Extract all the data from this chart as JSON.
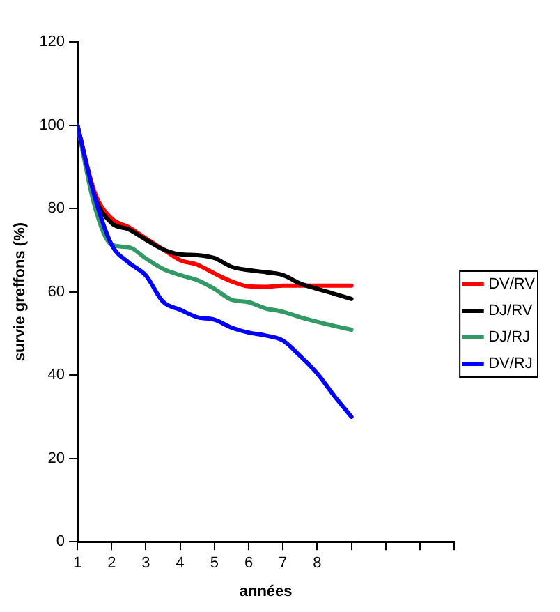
{
  "chart_data": {
    "type": "line",
    "xlabel": "années",
    "ylabel": "survie greffons (%)",
    "x": [
      1,
      1.5,
      2,
      2.5,
      3,
      3.5,
      4,
      4.5,
      5,
      5.5,
      6,
      6.5,
      7,
      7.5,
      8,
      8.5,
      9
    ],
    "series": [
      {
        "name": "DV/RV",
        "color": "#ff0000",
        "values": [
          100,
          84,
          77.6,
          75.5,
          72.8,
          70.2,
          67.6,
          66.5,
          64.4,
          62.5,
          61.3,
          61.2,
          61.5,
          61.5,
          61.5,
          61.5,
          61.5
        ]
      },
      {
        "name": "DJ/RV",
        "color": "#000000",
        "values": [
          100,
          83,
          76.5,
          75,
          72.5,
          70.2,
          69,
          68.8,
          68.1,
          66,
          65.2,
          64.7,
          64,
          62,
          60.7,
          59.5,
          58.3
        ]
      },
      {
        "name": "DJ/RJ",
        "color": "#339966",
        "values": [
          100,
          80.7,
          71.3,
          70.7,
          68,
          65.5,
          64,
          62.8,
          60.7,
          58.1,
          57.5,
          56,
          55.2,
          53.9,
          52.8,
          51.8,
          50.9
        ]
      },
      {
        "name": "DV/RJ",
        "color": "#0000ff",
        "values": [
          100,
          83,
          71.3,
          67,
          63.9,
          57.6,
          55.7,
          53.9,
          53.3,
          51.4,
          50.2,
          49.5,
          48.3,
          44.6,
          40.4,
          35,
          30
        ]
      }
    ],
    "xlim": [
      1,
      12
    ],
    "xticks": [
      1,
      2,
      3,
      4,
      5,
      6,
      7,
      8,
      {
        "value": 9,
        "label": null
      },
      {
        "value": 10,
        "label": null
      },
      {
        "value": 11,
        "label": null
      },
      {
        "value": 12,
        "label": null
      }
    ],
    "ylim": [
      0,
      120
    ],
    "yticks": [
      0,
      20,
      40,
      60,
      80,
      100,
      120
    ],
    "grid": false,
    "legend": "right",
    "marker": "none",
    "line_style": "solid"
  }
}
